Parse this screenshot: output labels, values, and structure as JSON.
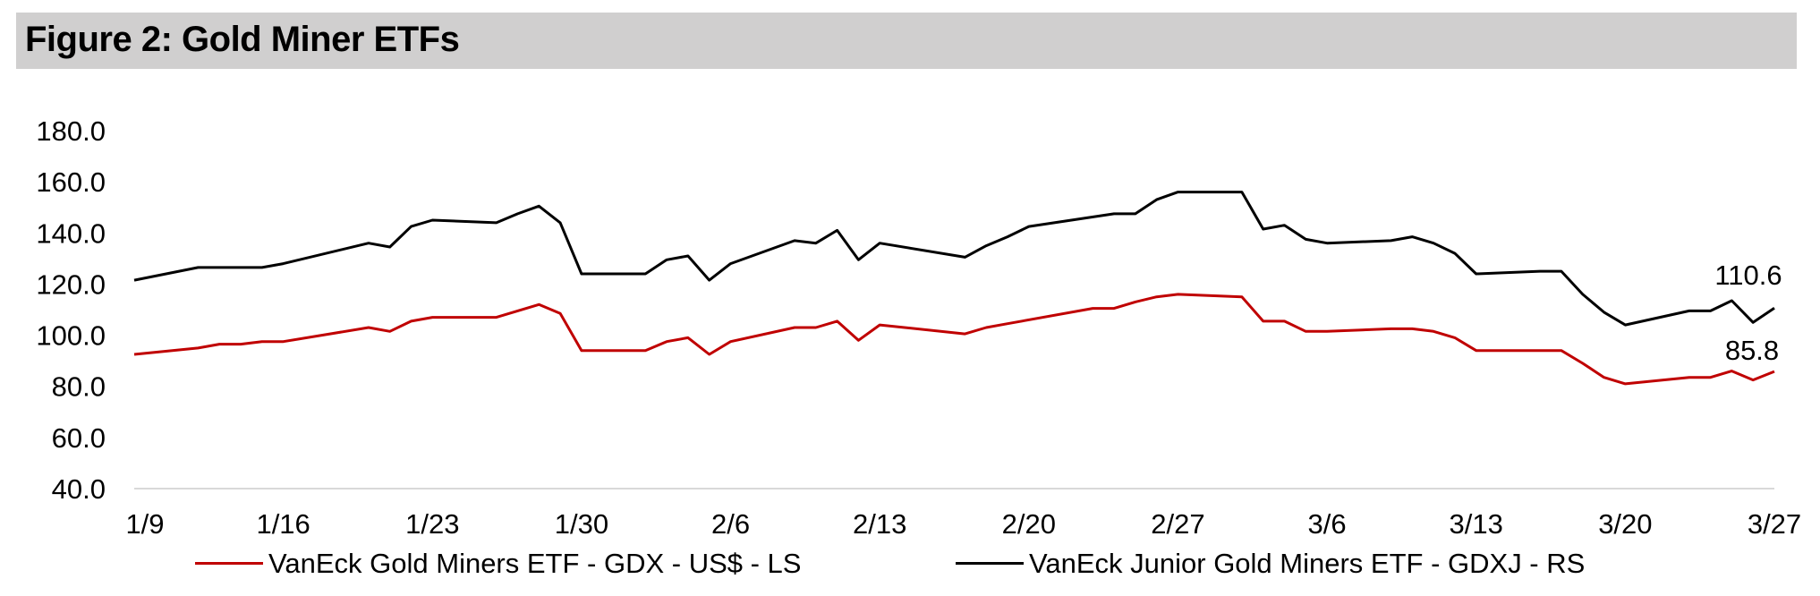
{
  "header": {
    "title": "Figure 2: Gold Miner ETFs"
  },
  "chart_data": {
    "type": "line",
    "title": "Figure 2: Gold Miner ETFs",
    "ylim": [
      40,
      180
    ],
    "yticks": [
      "40.0",
      "60.0",
      "80.0",
      "100.0",
      "120.0",
      "140.0",
      "160.0",
      "180.0"
    ],
    "xtick_labels": [
      "1/9",
      "1/16",
      "1/23",
      "1/30",
      "2/6",
      "2/13",
      "2/20",
      "2/27",
      "3/6",
      "3/13",
      "3/20",
      "3/27"
    ],
    "grid": false,
    "legend_position": "bottom",
    "series": [
      {
        "name": "VanEck Gold Miners ETF  - GDX  - US$ - LS",
        "color": "#c00000",
        "last_label": "85.8",
        "points": [
          [
            "1/9",
            92.5
          ],
          [
            "1/12",
            95
          ],
          [
            "1/13",
            96.5
          ],
          [
            "1/14",
            96.5
          ],
          [
            "1/15",
            97.5
          ],
          [
            "1/16",
            97.5
          ],
          [
            "1/20",
            103
          ],
          [
            "1/21",
            101.5
          ],
          [
            "1/22",
            105.5
          ],
          [
            "1/23",
            107
          ],
          [
            "1/26",
            107
          ],
          [
            "1/27",
            109.5
          ],
          [
            "1/28",
            112
          ],
          [
            "1/29",
            108.5
          ],
          [
            "1/30",
            94
          ],
          [
            "2/2",
            94
          ],
          [
            "2/3",
            97.5
          ],
          [
            "2/4",
            99
          ],
          [
            "2/5",
            92.5
          ],
          [
            "2/6",
            97.5
          ],
          [
            "2/9",
            103
          ],
          [
            "2/10",
            103
          ],
          [
            "2/11",
            105.5
          ],
          [
            "2/12",
            98
          ],
          [
            "2/13",
            104
          ],
          [
            "2/17",
            100.5
          ],
          [
            "2/18",
            103
          ],
          [
            "2/19",
            104.5
          ],
          [
            "2/23",
            110.5
          ],
          [
            "2/24",
            110.5
          ],
          [
            "2/25",
            113
          ],
          [
            "2/26",
            115
          ],
          [
            "2/27",
            116
          ],
          [
            "3/2",
            115
          ],
          [
            "3/3",
            105.5
          ],
          [
            "3/4",
            105.5
          ],
          [
            "3/5",
            101.5
          ],
          [
            "3/6",
            101.5
          ],
          [
            "3/9",
            102.5
          ],
          [
            "3/10",
            102.5
          ],
          [
            "3/11",
            101.5
          ],
          [
            "3/12",
            99
          ],
          [
            "3/13",
            94
          ],
          [
            "3/16",
            94
          ],
          [
            "3/17",
            94
          ],
          [
            "3/18",
            89
          ],
          [
            "3/19",
            83.5
          ],
          [
            "3/20",
            81
          ],
          [
            "3/23",
            83.5
          ],
          [
            "3/24",
            83.5
          ],
          [
            "3/25",
            86
          ],
          [
            "3/26",
            82.5
          ],
          [
            "3/27",
            85.8
          ]
        ]
      },
      {
        "name": "VanEck Junior Gold Miners ETF - GDXJ - RS",
        "color": "#000000",
        "last_label": "110.6",
        "points": [
          [
            "1/9",
            121.5
          ],
          [
            "1/12",
            126.5
          ],
          [
            "1/13",
            126.5
          ],
          [
            "1/14",
            126.5
          ],
          [
            "1/15",
            126.5
          ],
          [
            "1/16",
            128
          ],
          [
            "1/20",
            136
          ],
          [
            "1/21",
            134.5
          ],
          [
            "1/22",
            142.5
          ],
          [
            "1/23",
            145
          ],
          [
            "1/26",
            144
          ],
          [
            "1/27",
            147.5
          ],
          [
            "1/28",
            150.5
          ],
          [
            "1/29",
            144
          ],
          [
            "1/30",
            124
          ],
          [
            "2/2",
            124
          ],
          [
            "2/3",
            129.5
          ],
          [
            "2/4",
            131
          ],
          [
            "2/5",
            121.5
          ],
          [
            "2/6",
            128
          ],
          [
            "2/9",
            137
          ],
          [
            "2/10",
            136
          ],
          [
            "2/11",
            141
          ],
          [
            "2/12",
            129.5
          ],
          [
            "2/13",
            136
          ],
          [
            "2/17",
            130.5
          ],
          [
            "2/18",
            135
          ],
          [
            "2/19",
            138.5
          ],
          [
            "2/20",
            142.5
          ],
          [
            "2/24",
            147.5
          ],
          [
            "2/25",
            147.5
          ],
          [
            "2/26",
            153
          ],
          [
            "2/27",
            156
          ],
          [
            "3/2",
            156
          ],
          [
            "3/3",
            141.5
          ],
          [
            "3/4",
            143
          ],
          [
            "3/5",
            137.5
          ],
          [
            "3/6",
            136
          ],
          [
            "3/9",
            137
          ],
          [
            "3/10",
            138.5
          ],
          [
            "3/11",
            136
          ],
          [
            "3/12",
            132
          ],
          [
            "3/13",
            124
          ],
          [
            "3/16",
            125
          ],
          [
            "3/17",
            125
          ],
          [
            "3/18",
            116
          ],
          [
            "3/19",
            109
          ],
          [
            "3/20",
            104
          ],
          [
            "3/23",
            109.5
          ],
          [
            "3/24",
            109.5
          ],
          [
            "3/25",
            113.5
          ],
          [
            "3/26",
            105
          ],
          [
            "3/27",
            110.6
          ]
        ]
      }
    ]
  }
}
